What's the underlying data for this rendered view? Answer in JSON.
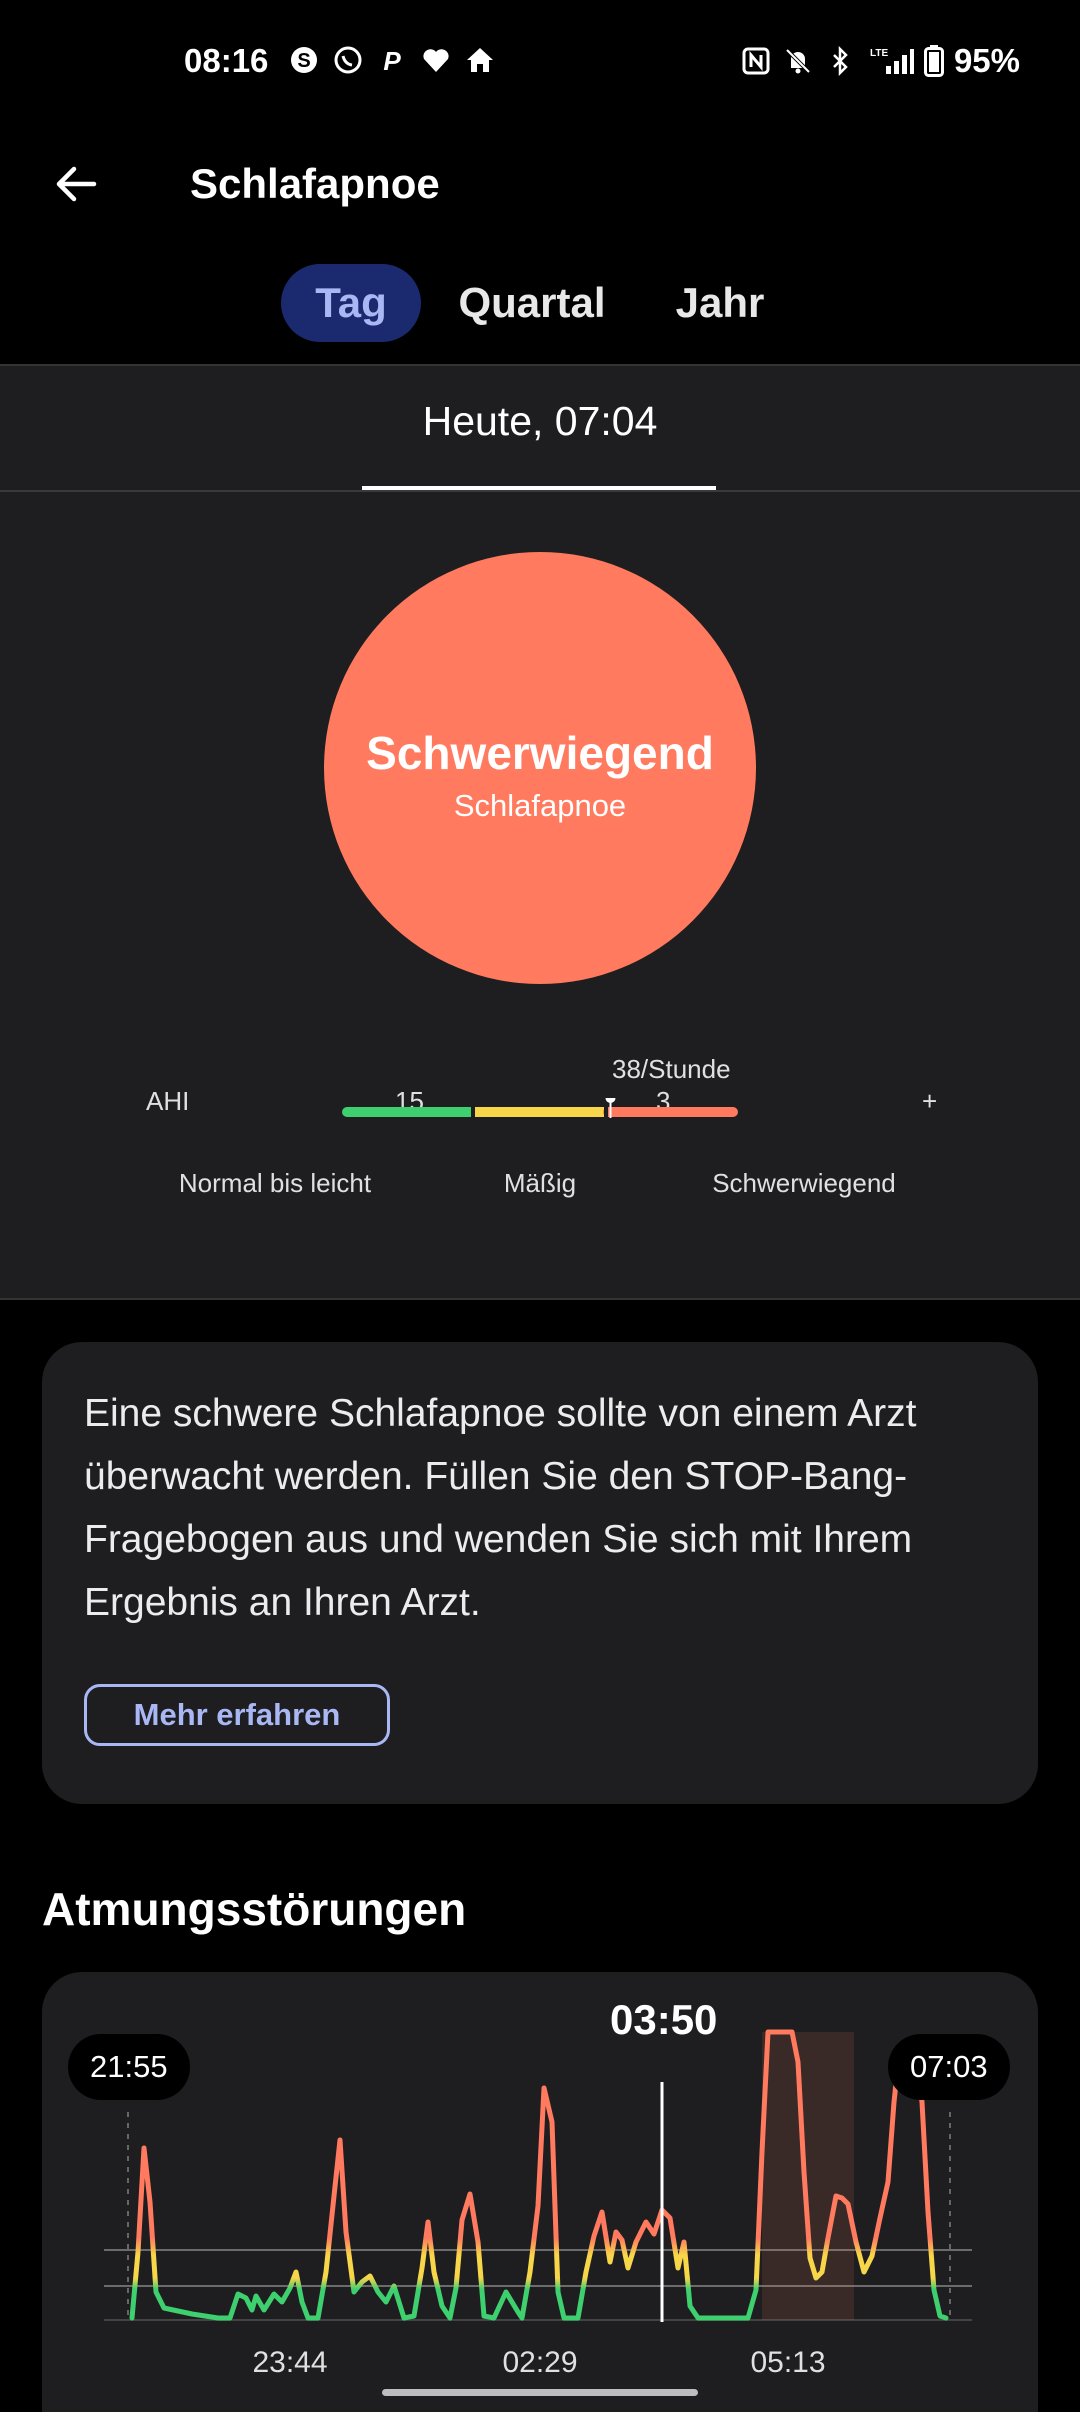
{
  "status_bar": {
    "time": "08:16",
    "left_icons": [
      "skype-icon",
      "whatsapp-icon",
      "paypal-icon",
      "heart-icon",
      "home-icon"
    ],
    "right_icons": [
      "nfc-icon",
      "bell-off-icon",
      "bluetooth-icon",
      "lte-signal-icon",
      "battery-icon"
    ],
    "battery_percent": "95%"
  },
  "header": {
    "title": "Schlafapnoe"
  },
  "tabs": [
    {
      "label": "Tag",
      "active": true
    },
    {
      "label": "Quartal",
      "active": false
    },
    {
      "label": "Jahr",
      "active": false
    }
  ],
  "date": "Heute, 07:04",
  "severity": {
    "title": "Schwerwiegend",
    "subtitle": "Schlafapnoe",
    "color": "#ff7a5e"
  },
  "ahi_scale": {
    "label": "AHI",
    "tick_1": "15",
    "tick_2": "3",
    "tick_end": "+",
    "marker_label": "38/Stunde",
    "marker_value": 38,
    "zones": [
      {
        "label": "Normal bis leicht",
        "color": "#3ecf6e"
      },
      {
        "label": "Mäßig",
        "color": "#f7d64a"
      },
      {
        "label": "Schwerwiegend",
        "color": "#ff7a5e"
      }
    ]
  },
  "info": {
    "text": "Eine schwere Schlafapnoe sollte von einem Arzt überwacht werden. Füllen Sie den STOP-Bang-Fragebogen aus und wenden Sie sich mit Ihrem Ergebnis an Ihren Arzt.",
    "button": "Mehr erfahren"
  },
  "breathing": {
    "title": "Atmungsstörungen",
    "start_time": "21:55",
    "end_time": "07:03",
    "selected_time": "03:50",
    "x_ticks": [
      "23:44",
      "02:29",
      "05:13"
    ]
  }
}
